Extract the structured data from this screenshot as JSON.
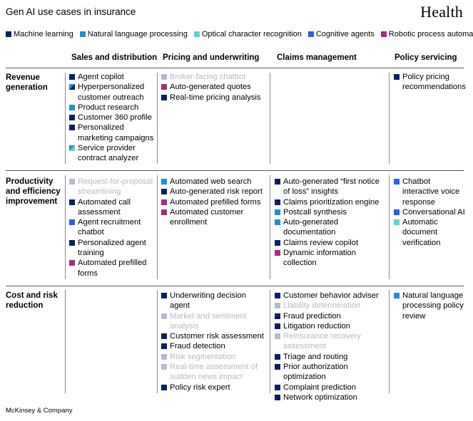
{
  "header": {
    "title": "Gen AI use cases in insurance",
    "brand": "Health"
  },
  "legend": [
    {
      "label": "Machine learning",
      "color": "#0b1f63"
    },
    {
      "label": "Natural language processing",
      "color": "#1f8fd6"
    },
    {
      "label": "Optical character recognition",
      "color": "#62d1d1"
    },
    {
      "label": "Cognitive agents",
      "color": "#2a5cf0"
    },
    {
      "label": "Robotic process automation",
      "color": "#a62b7d"
    }
  ],
  "columns": [
    "Sales and distribution",
    "Pricing and underwriting",
    "Claims management",
    "Policy servicing"
  ],
  "rows": [
    {
      "label": "Revenue\ngeneration",
      "cells": [
        [
          {
            "text": "Agent copilot",
            "type": "ml"
          },
          {
            "text": "Hyperpersonalized customer outreach",
            "type": "ml-nlp"
          },
          {
            "text": "Product research",
            "type": "nlp"
          },
          {
            "text": "Customer 360 profile",
            "type": "ml"
          },
          {
            "text": "Personalized marketing campaigns",
            "type": "ml"
          },
          {
            "text": "Service provider contract analyzer",
            "type": "nlp-ocr"
          }
        ],
        [
          {
            "text": "Broker-facing chatbot",
            "type": "ml",
            "faded": true
          },
          {
            "text": "Auto-generated quotes",
            "type": "rpa"
          },
          {
            "text": "Real-time pricing analysis",
            "type": "ml"
          }
        ],
        [],
        [
          {
            "text": "Policy pricing recommendations",
            "type": "ml"
          }
        ]
      ]
    },
    {
      "label": "Productivity\nand efficiency\nimprovement",
      "cells": [
        [
          {
            "text": "Request-for-proposal streamlining",
            "type": "ml",
            "faded": true
          },
          {
            "text": "Automated call assessment",
            "type": "ml"
          },
          {
            "text": "Agent recruitment chatbot",
            "type": "cog"
          },
          {
            "text": "Personalized agent training",
            "type": "ml"
          },
          {
            "text": "Automated prefilled forms",
            "type": "rpa"
          }
        ],
        [
          {
            "text": "Automated web search",
            "type": "nlp"
          },
          {
            "text": "Auto-generated risk report",
            "type": "ml"
          },
          {
            "text": "Automated prefilled forms",
            "type": "rpa"
          },
          {
            "text": "Automated customer enrollment",
            "type": "rpa"
          }
        ],
        [
          {
            "text": "Auto-generated “first notice of loss” insights",
            "type": "ml"
          },
          {
            "text": "Claims prioritization engine",
            "type": "ml"
          },
          {
            "text": "Postcall synthesis",
            "type": "nlp"
          },
          {
            "text": "Auto-generated documentation",
            "type": "nlp"
          },
          {
            "text": "Claims review copilot",
            "type": "ml"
          },
          {
            "text": "Dynamic information collection",
            "type": "rpa"
          }
        ],
        [
          {
            "text": "Chatbot interactive voice response",
            "type": "cog"
          },
          {
            "text": "Conversational AI",
            "type": "cog"
          },
          {
            "text": "Automatic document verification",
            "type": "ocr"
          }
        ]
      ]
    },
    {
      "label": "Cost and risk\nreduction",
      "cells": [
        [],
        [
          {
            "text": "Underwriting decision agent",
            "type": "ml"
          },
          {
            "text": "Market and sentiment analysis",
            "type": "ml",
            "faded": true
          },
          {
            "text": "Customer risk assessment",
            "type": "ml"
          },
          {
            "text": "Fraud detection",
            "type": "ml"
          },
          {
            "text": "Risk segmentation",
            "type": "ml",
            "faded": true
          },
          {
            "text": "Real-time assessment of sudden news impact",
            "type": "ml",
            "faded": true
          },
          {
            "text": "Policy risk expert",
            "type": "ml"
          }
        ],
        [
          {
            "text": "Customer behavior adviser",
            "type": "ml"
          },
          {
            "text": "Liability determination",
            "type": "ml",
            "faded": true
          },
          {
            "text": "Fraud prediction",
            "type": "ml"
          },
          {
            "text": "Litigation reduction",
            "type": "ml"
          },
          {
            "text": "Reinsurance recovery assessment",
            "type": "ml",
            "faded": true
          },
          {
            "text": "Triage and routing",
            "type": "ml"
          },
          {
            "text": "Prior authorization optimization",
            "type": "ml"
          },
          {
            "text": "Complaint prediction",
            "type": "ml"
          },
          {
            "text": "Network optimization",
            "type": "ml"
          }
        ],
        [
          {
            "text": "Natural language processing policy review",
            "type": "nlp"
          }
        ]
      ]
    }
  ],
  "footer": "McKinsey & Company"
}
